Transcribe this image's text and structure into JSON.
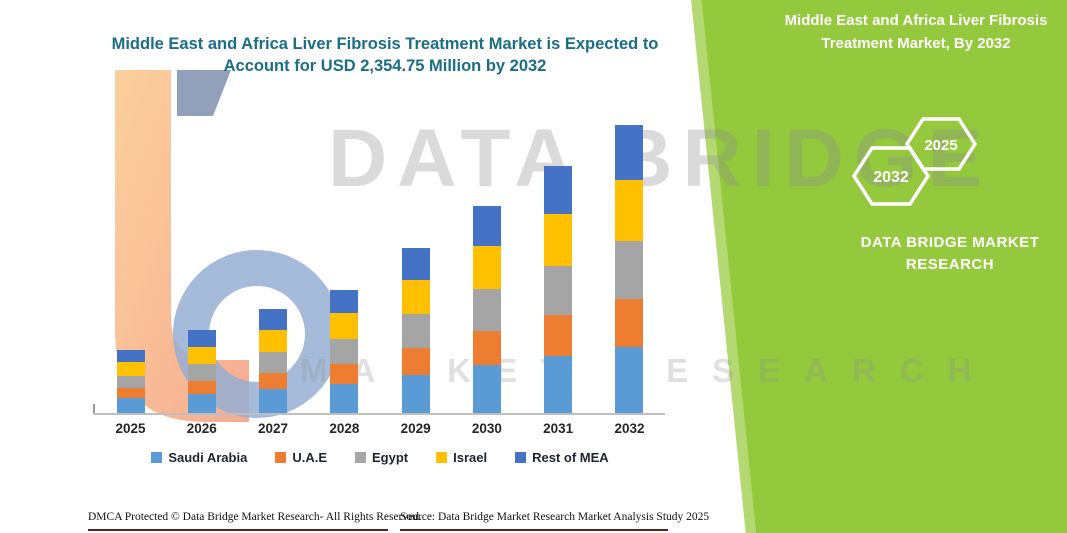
{
  "title": {
    "line1": "Middle East and Africa Liver Fibrosis Treatment Market is Expected to",
    "line2": "Account for USD 2,354.75 Million by 2032"
  },
  "side_panel": {
    "bg_color": "#94C83D",
    "title_line1": "Middle East and Africa Liver Fibrosis",
    "title_line2": "Treatment Market, By 2032",
    "hexagons": [
      "2032",
      "2025"
    ],
    "brand_line1": "DATA BRIDGE MARKET",
    "brand_line2": "RESEARCH"
  },
  "watermark": {
    "line1": "DATA BRIDGE",
    "line2": "MARKET RESEARCH"
  },
  "footer": {
    "left": "DMCA Protected © Data Bridge Market Research-  All Rights Reserved.",
    "source": "Source: Data Bridge Market Research  Market Analysis Study 2025"
  },
  "chart_data": {
    "type": "bar",
    "stacked": true,
    "title": "Middle East and Africa Liver Fibrosis Treatment Market is Expected to Account for USD 2,354.75 Million by 2032",
    "unit": "USD Million",
    "categories": [
      "2025",
      "2026",
      "2027",
      "2028",
      "2029",
      "2030",
      "2031",
      "2032"
    ],
    "series": [
      {
        "name": "Saudi Arabia",
        "color": "#5B9BD5",
        "values": [
          119,
          153,
          195,
          238,
          314,
          391,
          467,
          544
        ]
      },
      {
        "name": "U.A.E",
        "color": "#ED7D31",
        "values": [
          85,
          110,
          136,
          161,
          221,
          280,
          331,
          391
        ]
      },
      {
        "name": "Egypt",
        "color": "#A5A5A5",
        "values": [
          102,
          136,
          170,
          204,
          272,
          340,
          408,
          476
        ]
      },
      {
        "name": "Israel",
        "color": "#FFC000",
        "values": [
          110,
          144,
          178,
          212,
          280,
          357,
          425,
          493
        ]
      },
      {
        "name": "Rest of MEA",
        "color": "#4472C4",
        "values": [
          102,
          136,
          170,
          195,
          263,
          323,
          391,
          450.75
        ]
      }
    ],
    "totals": [
      518,
      679,
      849,
      1010,
      1350,
      1691,
      2022,
      2354.75
    ],
    "ylim": [
      0,
      2600
    ],
    "grid": false,
    "legend_position": "bottom",
    "x_axis_visible_labels_only": true
  }
}
